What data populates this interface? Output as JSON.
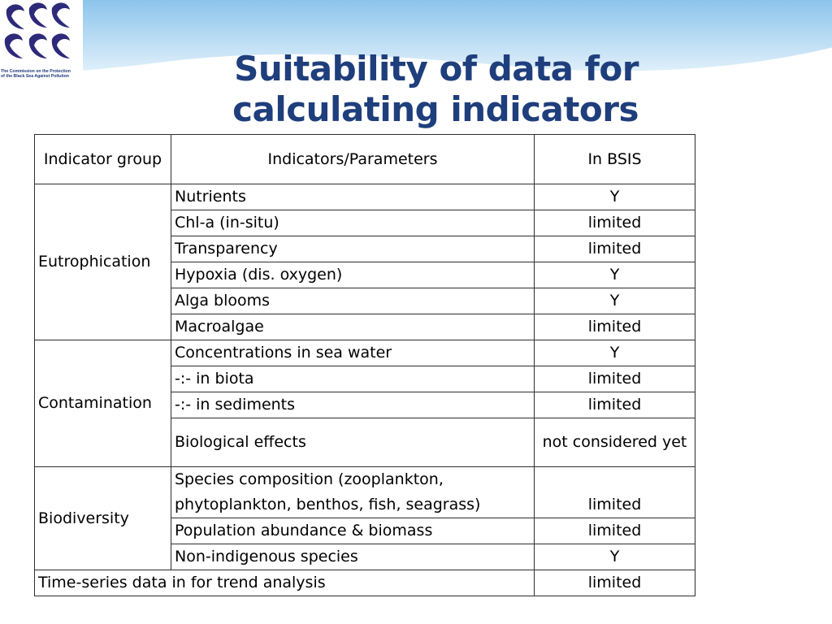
{
  "header": {
    "title": "Suitability of data for calculating indicators",
    "logo_caption": "The Commission on the Protection\nof the Black Sea Against Pollution",
    "colors": {
      "title": "#1f3e7c",
      "banner": "#a9d2ef",
      "logo_fish": "#2d2a7a"
    }
  },
  "table": {
    "col_group": "Indicator group",
    "col_param": "Indicators/Parameters",
    "col_bsis": "In BSIS",
    "groups": [
      {
        "name": "Eutrophication",
        "rows": [
          {
            "param": "Nutrients",
            "bsis": "Y"
          },
          {
            "param": "Chl-a (in-situ)",
            "bsis": "limited"
          },
          {
            "param": "Transparency",
            "bsis": "limited"
          },
          {
            "param": "Hypoxia (dis. oxygen)",
            "bsis": "Y"
          },
          {
            "param": "Alga blooms",
            "bsis": "Y"
          },
          {
            "param": "Macroalgae",
            "bsis": "limited"
          }
        ]
      },
      {
        "name": "Contamination",
        "rows": [
          {
            "param": "Concentrations in sea water",
            "bsis": "Y"
          },
          {
            "param": "-:- in biota",
            "bsis": "limited"
          },
          {
            "param": "-:- in sediments",
            "bsis": "limited"
          },
          {
            "param": "Biological effects",
            "bsis": "not considered yet"
          }
        ]
      },
      {
        "name": "Biodiversity",
        "rows": [
          {
            "param": "Species composition (zooplankton, phytoplankton, benthos, fish, seagrass)",
            "bsis": "limited"
          },
          {
            "param": "Population abundance & biomass",
            "bsis": "limited"
          },
          {
            "param": "Non-indigenous species",
            "bsis": "Y"
          }
        ]
      }
    ],
    "footer_row": {
      "label": "Time-series data in for trend analysis",
      "bsis": "limited"
    }
  }
}
